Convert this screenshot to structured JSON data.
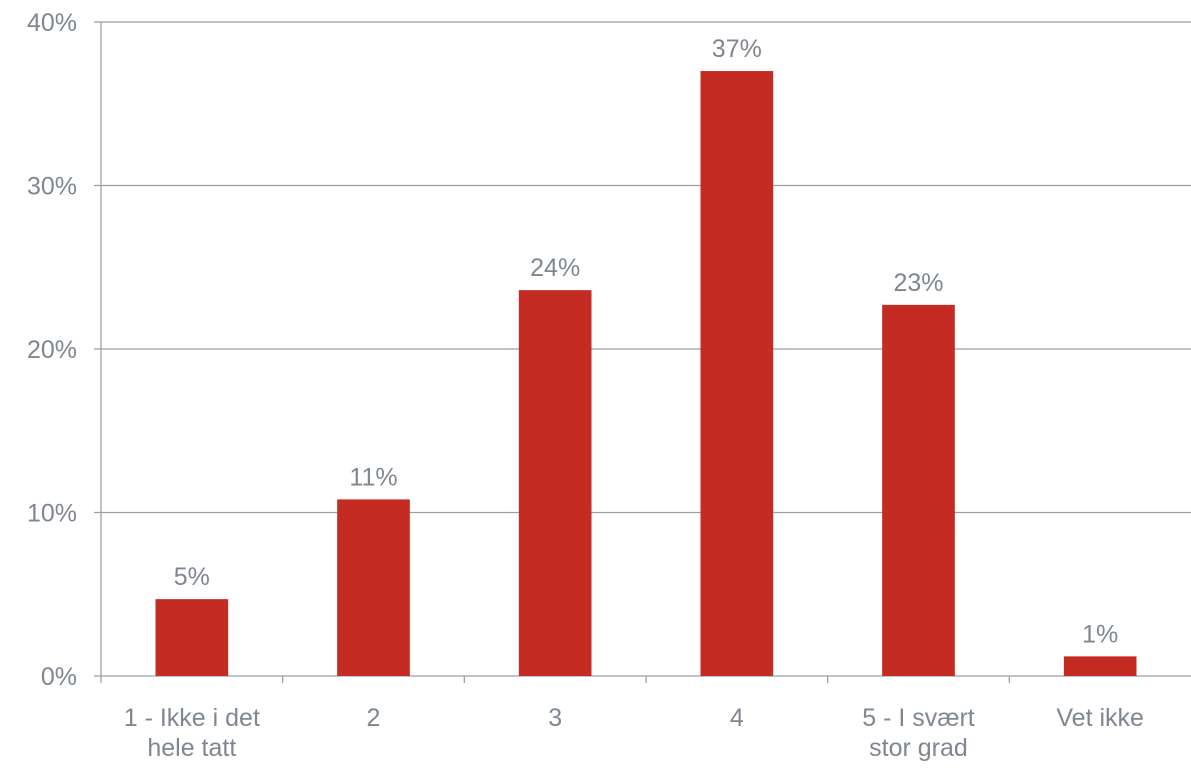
{
  "chart_data": {
    "type": "bar",
    "categories": [
      [
        "1 - Ikke i det",
        "hele tatt"
      ],
      [
        "2"
      ],
      [
        "3"
      ],
      [
        "4"
      ],
      [
        "5 - I svært",
        "stor grad"
      ],
      [
        "Vet ikke"
      ]
    ],
    "values": [
      4.7,
      10.8,
      23.6,
      37.0,
      22.7,
      1.2
    ],
    "data_labels": [
      "5%",
      "11%",
      "24%",
      "37%",
      "23%",
      "1%"
    ],
    "y_ticks": [
      0,
      10,
      20,
      30,
      40
    ],
    "y_tick_labels": [
      "0%",
      "10%",
      "20%",
      "30%",
      "40%"
    ],
    "ylim": [
      0,
      40
    ],
    "grid": true,
    "bar_color": "#c42b22",
    "text_color": "#7f8790",
    "grid_color": "#9aa0a6"
  }
}
